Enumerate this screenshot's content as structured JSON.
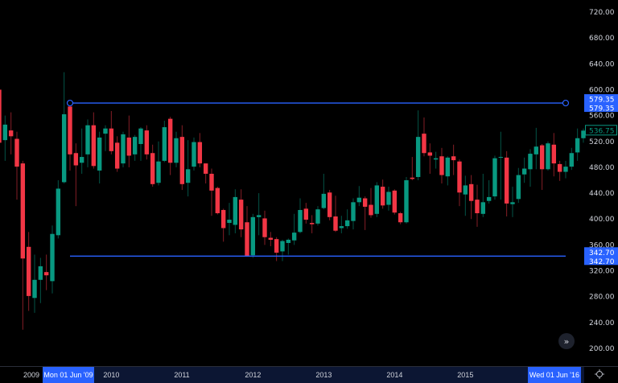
{
  "chart_data": {
    "type": "candlestick",
    "interval": "monthly",
    "colors": {
      "up": "#089981",
      "down": "#f23645",
      "background": "#000000",
      "drawing": "#2962ff",
      "axis_label": "#2962ff",
      "range_band": "#0c1633"
    },
    "y_ticks": [
      "720.00",
      "680.00",
      "640.00",
      "600.00",
      "560.00",
      "520.00",
      "480.00",
      "440.00",
      "400.00",
      "360.00",
      "320.00",
      "280.00",
      "240.00",
      "200.00"
    ],
    "ylim": [
      200,
      720
    ],
    "x_ticks": [
      {
        "label": "2009",
        "date": "2009-01"
      },
      {
        "label": "2010",
        "date": "2010-01"
      },
      {
        "label": "2011",
        "date": "2011-01"
      },
      {
        "label": "2012",
        "date": "2012-01"
      },
      {
        "label": "2013",
        "date": "2013-01"
      },
      {
        "label": "2014",
        "date": "2014-01"
      },
      {
        "label": "2015",
        "date": "2015-01"
      }
    ],
    "range_start_label": "Mon 01 Jun '09",
    "range_end_label": "Wed 01 Jun '16",
    "range_start_date": "2009-06",
    "range_end_date": "2016-06",
    "last_price": "536.75",
    "horizontal_lines": [
      {
        "price": 579.35,
        "label": "579.35",
        "label2": "579.35",
        "from": "2009-06",
        "to": "2016-06",
        "handles": true
      },
      {
        "price": 342.7,
        "label": "342.70",
        "label2": "342.70",
        "from": "2009-06",
        "to": "2016-06",
        "handles": false
      }
    ],
    "candles": [
      [
        "2008-06",
        600,
        610,
        515,
        518
      ],
      [
        "2008-07",
        522,
        560,
        490,
        546
      ],
      [
        "2008-08",
        537,
        565,
        500,
        528
      ],
      [
        "2008-09",
        524,
        535,
        430,
        481
      ],
      [
        "2008-10",
        486,
        490,
        229,
        339
      ],
      [
        "2008-11",
        357,
        380,
        258,
        281
      ],
      [
        "2008-12",
        278,
        345,
        255,
        306
      ],
      [
        "2009-01",
        306,
        340,
        270,
        327
      ],
      [
        "2009-02",
        318,
        345,
        290,
        313
      ],
      [
        "2009-03",
        304,
        390,
        285,
        377
      ],
      [
        "2009-04",
        375,
        460,
        370,
        447
      ],
      [
        "2009-05",
        457,
        627,
        455,
        562
      ],
      [
        "2009-06",
        574,
        579.35,
        475,
        500
      ],
      [
        "2009-07",
        502,
        517,
        420,
        483
      ],
      [
        "2009-08",
        487,
        540,
        470,
        496
      ],
      [
        "2009-09",
        500,
        554,
        480,
        545
      ],
      [
        "2009-10",
        545,
        565,
        478,
        482
      ],
      [
        "2009-11",
        475,
        535,
        455,
        526
      ],
      [
        "2009-12",
        532,
        545,
        505,
        540
      ],
      [
        "2010-01",
        540,
        567,
        500,
        505
      ],
      [
        "2010-02",
        518,
        528,
        473,
        478
      ],
      [
        "2010-03",
        486,
        535,
        480,
        531
      ],
      [
        "2010-04",
        526,
        560,
        480,
        498
      ],
      [
        "2010-05",
        500,
        530,
        490,
        527
      ],
      [
        "2010-06",
        516,
        542,
        490,
        540
      ],
      [
        "2010-07",
        537,
        545,
        492,
        500
      ],
      [
        "2010-08",
        502,
        515,
        450,
        454
      ],
      [
        "2010-09",
        456,
        520,
        452,
        489
      ],
      [
        "2010-10",
        490,
        552,
        488,
        542
      ],
      [
        "2010-11",
        555,
        558,
        468,
        487
      ],
      [
        "2010-12",
        487,
        535,
        480,
        525
      ],
      [
        "2011-01",
        527,
        545,
        445,
        454
      ],
      [
        "2011-02",
        456,
        522,
        435,
        477
      ],
      [
        "2011-03",
        481,
        526,
        475,
        519
      ],
      [
        "2011-04",
        519,
        533,
        480,
        486
      ],
      [
        "2011-05",
        486,
        486,
        455,
        470
      ],
      [
        "2011-06",
        470,
        478,
        405,
        444
      ],
      [
        "2011-07",
        448,
        450,
        407,
        409
      ],
      [
        "2011-08",
        414,
        416,
        365,
        386
      ],
      [
        "2011-09",
        394,
        425,
        375,
        399
      ],
      [
        "2011-10",
        391,
        446,
        378,
        434
      ],
      [
        "2011-11",
        430,
        446,
        372,
        384
      ],
      [
        "2011-12",
        395,
        420,
        342.7,
        342.7
      ],
      [
        "2012-01",
        344,
        408,
        340,
        403
      ],
      [
        "2012-02",
        403,
        440,
        375,
        406
      ],
      [
        "2012-03",
        401,
        413,
        360,
        372
      ],
      [
        "2012-04",
        371,
        380,
        358,
        368
      ],
      [
        "2012-05",
        369,
        372,
        335,
        348
      ],
      [
        "2012-06",
        350,
        368,
        335,
        366
      ],
      [
        "2012-07",
        363,
        370,
        345,
        368
      ],
      [
        "2012-08",
        367,
        408,
        360,
        379
      ],
      [
        "2012-09",
        380,
        432,
        378,
        414
      ],
      [
        "2012-10",
        416,
        425,
        393,
        399
      ],
      [
        "2012-11",
        394,
        406,
        378,
        392
      ],
      [
        "2012-12",
        393,
        420,
        390,
        415
      ],
      [
        "2013-01",
        417,
        470,
        415,
        439
      ],
      [
        "2013-02",
        441,
        445,
        398,
        403
      ],
      [
        "2013-03",
        404,
        436,
        380,
        382
      ],
      [
        "2013-04",
        386,
        405,
        378,
        389
      ],
      [
        "2013-05",
        389,
        415,
        385,
        398
      ],
      [
        "2013-06",
        397,
        432,
        384,
        426
      ],
      [
        "2013-07",
        426,
        451,
        420,
        433
      ],
      [
        "2013-08",
        432,
        435,
        383,
        419
      ],
      [
        "2013-09",
        422,
        448,
        402,
        406
      ],
      [
        "2013-10",
        408,
        457,
        403,
        452
      ],
      [
        "2013-11",
        450,
        461,
        416,
        421
      ],
      [
        "2013-12",
        422,
        450,
        413,
        442
      ],
      [
        "2014-01",
        444,
        446,
        407,
        410
      ],
      [
        "2014-02",
        409,
        411,
        392,
        395
      ],
      [
        "2014-03",
        395,
        465,
        393,
        460
      ],
      [
        "2014-04",
        464,
        496,
        460,
        462
      ],
      [
        "2014-05",
        465,
        568,
        460,
        527
      ],
      [
        "2014-06",
        532,
        557,
        497,
        502
      ],
      [
        "2014-07",
        503,
        517,
        470,
        498
      ],
      [
        "2014-08",
        492,
        504,
        478,
        494
      ],
      [
        "2014-09",
        497,
        510,
        455,
        468
      ],
      [
        "2014-10",
        466,
        497,
        452,
        495
      ],
      [
        "2014-11",
        497,
        515,
        468,
        491
      ],
      [
        "2014-12",
        489,
        492,
        420,
        441
      ],
      [
        "2015-01",
        438,
        467,
        405,
        452
      ],
      [
        "2015-02",
        454,
        468,
        400,
        428
      ],
      [
        "2015-03",
        430,
        453,
        388,
        409
      ],
      [
        "2015-04",
        408,
        470,
        403,
        426
      ],
      [
        "2015-05",
        428,
        460,
        424,
        434
      ],
      [
        "2015-06",
        435,
        498,
        430,
        494
      ],
      [
        "2015-07",
        495,
        535,
        430,
        496
      ],
      [
        "2015-08",
        495,
        505,
        404,
        424
      ],
      [
        "2015-09",
        423,
        450,
        403,
        426
      ],
      [
        "2015-10",
        431,
        479,
        425,
        468
      ],
      [
        "2015-11",
        469,
        495,
        456,
        478
      ],
      [
        "2015-12",
        477,
        508,
        450,
        501
      ],
      [
        "2016-01",
        500,
        541,
        477,
        512
      ],
      [
        "2016-02",
        514,
        516,
        445,
        477
      ],
      [
        "2016-03",
        477,
        520,
        475,
        517
      ],
      [
        "2016-04",
        515,
        533,
        466,
        486
      ],
      [
        "2016-05",
        485,
        490,
        459,
        473
      ],
      [
        "2016-06",
        473,
        490,
        463,
        481
      ],
      [
        "2016-07",
        481,
        510,
        476,
        502
      ],
      [
        "2016-08",
        503,
        540,
        490,
        525
      ],
      [
        "2016-09",
        525,
        540,
        518,
        536.75
      ]
    ]
  },
  "controls": {
    "scroll_right_icon": "double-chevron-right-icon",
    "settings_icon": "gear-icon"
  }
}
